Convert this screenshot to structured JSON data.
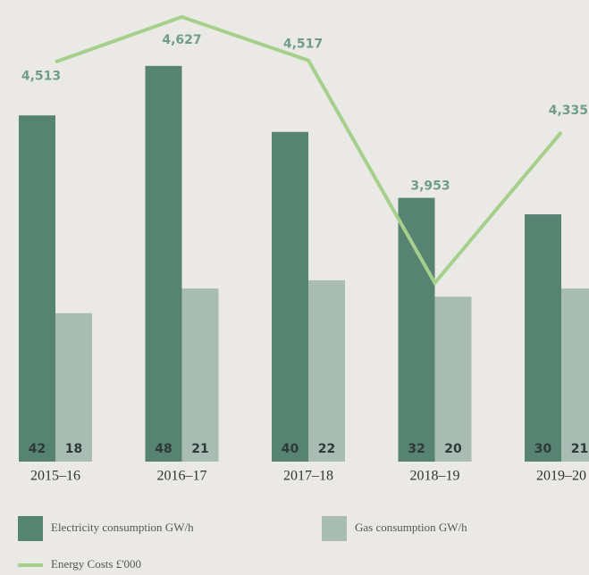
{
  "chart_data": {
    "type": "bar",
    "categories": [
      "2015–16",
      "2016–17",
      "2017–18",
      "2018–19",
      "2019–20"
    ],
    "series": [
      {
        "name": "Electricity consumption GW/h",
        "color": "#578373",
        "values": [
          42,
          48,
          40,
          32,
          30
        ]
      },
      {
        "name": "Gas consumption GW/h",
        "color": "#a9bcb4",
        "values": [
          18,
          21,
          22,
          20,
          21
        ]
      },
      {
        "name": "Energy Costs £'000",
        "color": "#a5cf8b",
        "type": "line",
        "axis": "y2",
        "values": [
          4513,
          4627,
          4517,
          3953,
          4335
        ],
        "value_labels": [
          "4,513",
          "4,627",
          "4,517",
          "3,953",
          "4,335"
        ]
      }
    ],
    "ylim": [
      0,
      56
    ],
    "y2lim": [
      3500,
      4670
    ]
  }
}
